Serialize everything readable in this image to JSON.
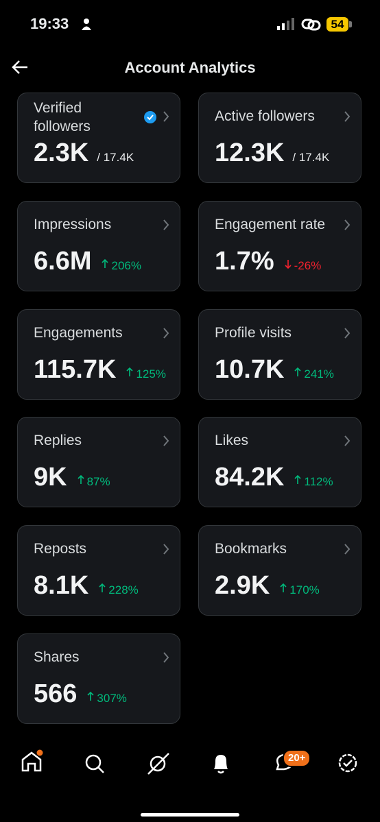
{
  "status_bar": {
    "time": "19:33",
    "battery": "54"
  },
  "header": {
    "title": "Account Analytics"
  },
  "cards": [
    {
      "label": "Verified followers",
      "value": "2.3K",
      "suffix": "/ 17.4K",
      "verified_badge": true
    },
    {
      "label": "Active followers",
      "value": "12.3K",
      "suffix": "/ 17.4K"
    },
    {
      "label": "Impressions",
      "value": "6.6M",
      "change": "206%",
      "trend": "up"
    },
    {
      "label": "Engagement rate",
      "value": "1.7%",
      "change": "-26%",
      "trend": "down"
    },
    {
      "label": "Engagements",
      "value": "115.7K",
      "change": "125%",
      "trend": "up"
    },
    {
      "label": "Profile visits",
      "value": "10.7K",
      "change": "241%",
      "trend": "up"
    },
    {
      "label": "Replies",
      "value": "9K",
      "change": "87%",
      "trend": "up"
    },
    {
      "label": "Likes",
      "value": "84.2K",
      "change": "112%",
      "trend": "up"
    },
    {
      "label": "Reposts",
      "value": "8.1K",
      "change": "228%",
      "trend": "up"
    },
    {
      "label": "Bookmarks",
      "value": "2.9K",
      "change": "170%",
      "trend": "up"
    },
    {
      "label": "Shares",
      "value": "566",
      "change": "307%",
      "trend": "up"
    }
  ],
  "nav": {
    "messages_badge": "20+"
  }
}
